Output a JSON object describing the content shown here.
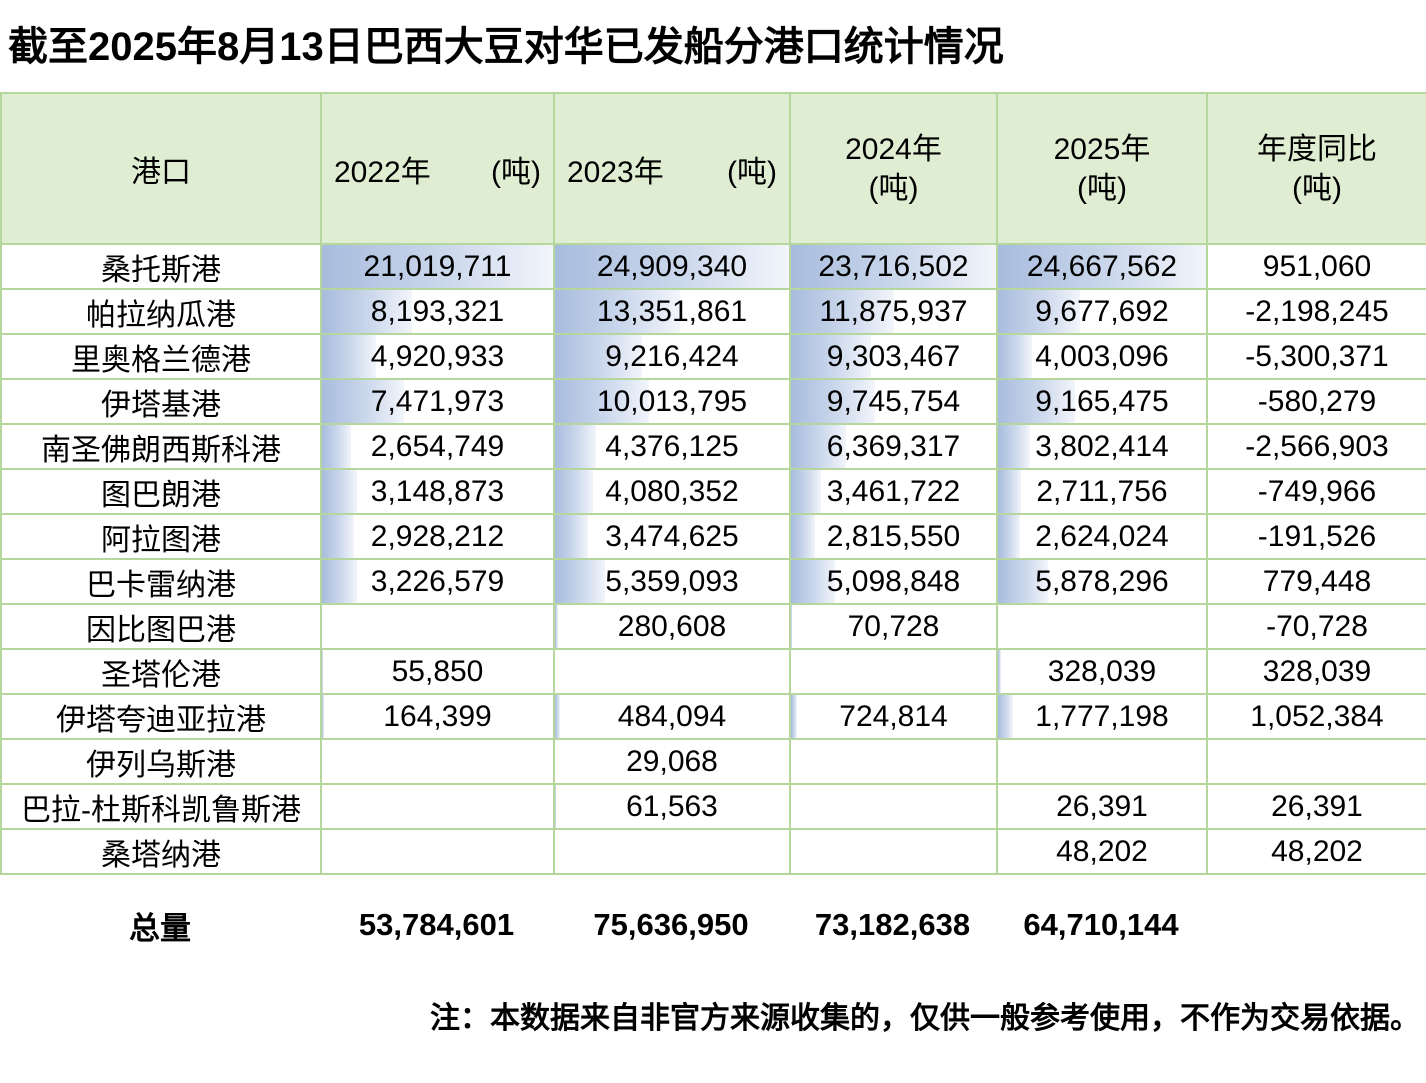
{
  "title": "截至2025年8月13日巴西大豆对华已发船分港口统计情况",
  "table": {
    "port_header": "港口",
    "value_columns": [
      {
        "label": "2022年",
        "unit": "(吨)",
        "style": "inline",
        "max": 21019711
      },
      {
        "label": "2023年",
        "unit": "(吨)",
        "style": "inline",
        "max": 24909340
      },
      {
        "label": "2024年",
        "unit": "(吨)",
        "style": "stacked",
        "max": 23716502
      },
      {
        "label": "2025年",
        "unit": "(吨)",
        "style": "stacked",
        "max": 24667562
      },
      {
        "label": "年度同比",
        "unit": "(吨)",
        "style": "stacked",
        "max": null
      }
    ],
    "rows": [
      {
        "port": "桑托斯港",
        "values": [
          21019711,
          24909340,
          23716502,
          24667562
        ],
        "yoy": 951060
      },
      {
        "port": "帕拉纳瓜港",
        "values": [
          8193321,
          13351861,
          11875937,
          9677692
        ],
        "yoy": -2198245
      },
      {
        "port": "里奥格兰德港",
        "values": [
          4920933,
          9216424,
          9303467,
          4003096
        ],
        "yoy": -5300371
      },
      {
        "port": "伊塔基港",
        "values": [
          7471973,
          10013795,
          9745754,
          9165475
        ],
        "yoy": -580279
      },
      {
        "port": "南圣佛朗西斯科港",
        "values": [
          2654749,
          4376125,
          6369317,
          3802414
        ],
        "yoy": -2566903
      },
      {
        "port": "图巴朗港",
        "values": [
          3148873,
          4080352,
          3461722,
          2711756
        ],
        "yoy": -749966
      },
      {
        "port": "阿拉图港",
        "values": [
          2928212,
          3474625,
          2815550,
          2624024
        ],
        "yoy": -191526
      },
      {
        "port": "巴卡雷纳港",
        "values": [
          3226579,
          5359093,
          5098848,
          5878296
        ],
        "yoy": 779448
      },
      {
        "port": "因比图巴港",
        "values": [
          null,
          280608,
          70728,
          null
        ],
        "yoy": -70728
      },
      {
        "port": "圣塔伦港",
        "values": [
          55850,
          null,
          null,
          328039
        ],
        "yoy": 328039
      },
      {
        "port": "伊塔夸迪亚拉港",
        "values": [
          164399,
          484094,
          724814,
          1777198
        ],
        "yoy": 1052384
      },
      {
        "port": "伊列乌斯港",
        "values": [
          null,
          29068,
          null,
          null
        ],
        "yoy": null
      },
      {
        "port": "巴拉-杜斯科凯鲁斯港",
        "values": [
          null,
          61563,
          null,
          26391
        ],
        "yoy": 26391
      },
      {
        "port": "桑塔纳港",
        "values": [
          null,
          null,
          null,
          48202
        ],
        "yoy": 48202
      }
    ],
    "total": {
      "label": "总量",
      "values": [
        53784601,
        75636950,
        73182638,
        64710144
      ]
    }
  },
  "note": "注：本数据来自非官方来源收集的，仅供一般参考使用，不作为交易依据。",
  "colors": {
    "header_bg": "#dfeed2",
    "border": "#b5d69c",
    "bar_gradient_start": "#a7bcdd",
    "bar_gradient_end": "#f2f5fb"
  }
}
